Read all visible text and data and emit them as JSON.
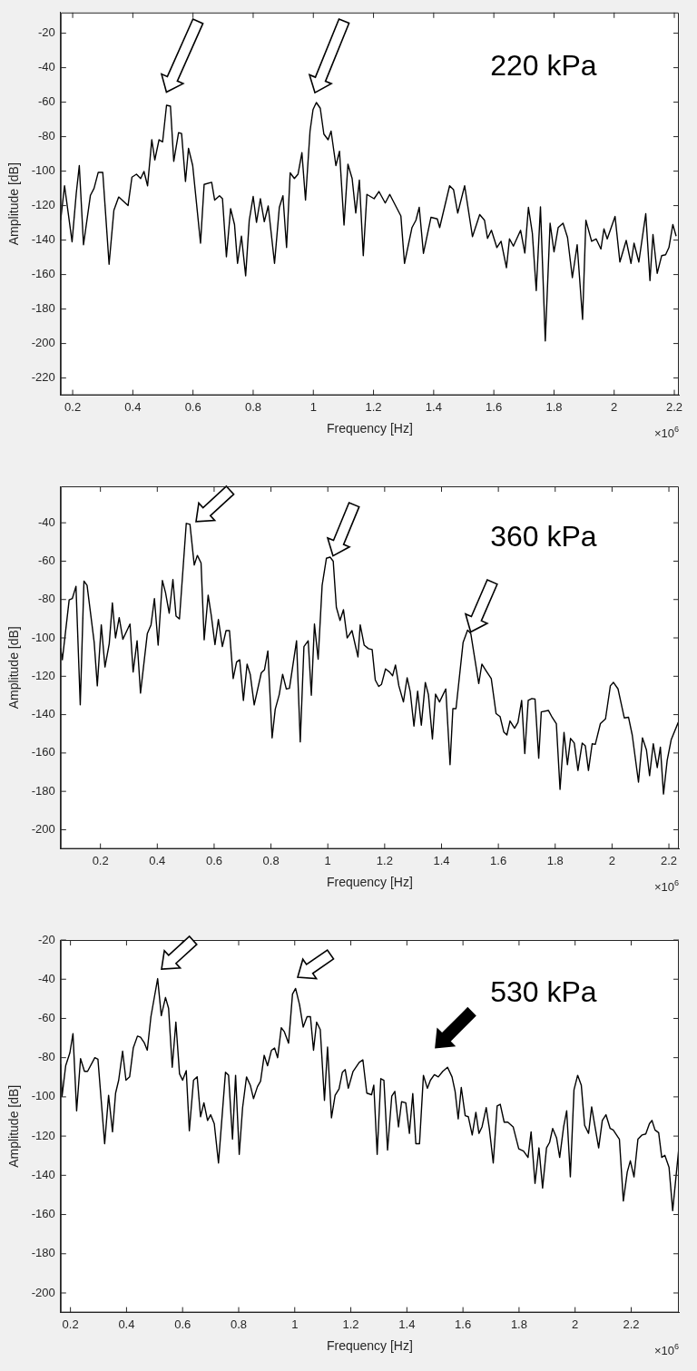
{
  "chart_data": [
    {
      "type": "line",
      "xlabel": "Frequency [Hz]",
      "ylabel": "Amplitude [dB]",
      "annotations": [
        "220 kPa",
        "×10$^{6}$"
      ],
      "marker": "none",
      "line_style": "solid",
      "xlim": [
        0.16,
        2.215
      ],
      "ylim": [
        -230,
        -8
      ],
      "xticks": [
        0.2,
        0.4,
        0.6,
        0.8,
        1,
        1.2,
        1.4,
        1.6,
        1.8,
        2,
        2.2
      ],
      "yticks": [
        -20,
        -40,
        -60,
        -80,
        -100,
        -120,
        -140,
        -160,
        -180,
        -200,
        -220
      ],
      "series": [
        {
          "color": "#000000",
          "x": [
            0.16,
            0.173,
            0.198,
            0.212,
            0.222,
            0.236,
            0.259,
            0.271,
            0.285,
            0.3,
            0.321,
            0.337,
            0.353,
            0.384,
            0.397,
            0.412,
            0.426,
            0.437,
            0.449,
            0.463,
            0.473,
            0.487,
            0.499,
            0.512,
            0.525,
            0.536,
            0.552,
            0.562,
            0.575,
            0.585,
            0.599,
            0.625,
            0.637,
            0.662,
            0.672,
            0.688,
            0.698,
            0.711,
            0.725,
            0.738,
            0.748,
            0.761,
            0.775,
            0.787,
            0.8,
            0.811,
            0.824,
            0.837,
            0.85,
            0.871,
            0.887,
            0.899,
            0.911,
            0.923,
            0.937,
            0.949,
            0.962,
            0.974,
            0.989,
            0.999,
            1.01,
            1.023,
            1.035,
            1.049,
            1.059,
            1.075,
            1.087,
            1.102,
            1.115,
            1.129,
            1.141,
            1.153,
            1.166,
            1.178,
            1.202,
            1.218,
            1.239,
            1.254,
            1.291,
            1.303,
            1.328,
            1.341,
            1.352,
            1.366,
            1.391,
            1.412,
            1.42,
            1.453,
            1.466,
            1.48,
            1.503,
            1.529,
            1.553,
            1.569,
            1.579,
            1.592,
            1.61,
            1.624,
            1.642,
            1.652,
            1.665,
            1.689,
            1.703,
            1.715,
            1.728,
            1.741,
            1.755,
            1.771,
            1.787,
            1.8,
            1.814,
            1.83,
            1.845,
            1.861,
            1.877,
            1.895,
            1.906,
            1.925,
            1.94,
            1.956,
            1.966,
            1.977,
            2.003,
            2.019,
            2.04,
            2.056,
            2.066,
            2.082,
            2.105,
            2.119,
            2.129,
            2.143,
            2.158,
            2.171,
            2.182,
            2.195,
            2.206
          ],
          "values": [
            -128.5,
            -108.5,
            -141,
            -112.7,
            -96.8,
            -142.7,
            -114,
            -110,
            -100.7,
            -100.7,
            -154,
            -122.7,
            -115,
            -120,
            -103.5,
            -101.8,
            -104.3,
            -100.2,
            -108.5,
            -81.8,
            -93.5,
            -81.8,
            -83,
            -61.8,
            -62.3,
            -94.3,
            -77.7,
            -78.2,
            -106,
            -86.8,
            -96.8,
            -141.8,
            -107.7,
            -106.5,
            -116.8,
            -114.3,
            -116,
            -149.7,
            -121.8,
            -131,
            -153.5,
            -137.7,
            -160.7,
            -128.5,
            -114.7,
            -129.7,
            -116,
            -129.3,
            -120.2,
            -153.5,
            -121,
            -114.3,
            -144.3,
            -101,
            -104.3,
            -101.8,
            -89.3,
            -116.8,
            -76.8,
            -64.3,
            -60.2,
            -63.5,
            -78.5,
            -81.8,
            -76.8,
            -96.8,
            -88.5,
            -131.3,
            -96,
            -104.3,
            -124.3,
            -105.2,
            -149,
            -113.5,
            -116,
            -111.8,
            -118.5,
            -113.5,
            -126,
            -153.5,
            -132.7,
            -128.5,
            -121,
            -147.7,
            -126.8,
            -127.7,
            -132.7,
            -108.5,
            -110.7,
            -124.3,
            -108.5,
            -138,
            -125.2,
            -128.5,
            -139,
            -134.3,
            -144.3,
            -140.7,
            -156,
            -139.3,
            -143.5,
            -134.3,
            -147.5,
            -121,
            -136,
            -169.3,
            -120.7,
            -198.5,
            -130.2,
            -146.8,
            -132.7,
            -130.2,
            -138.5,
            -161.8,
            -142.7,
            -186,
            -128.5,
            -140.7,
            -139.3,
            -145.2,
            -133.5,
            -139.3,
            -126.3,
            -152.7,
            -140.2,
            -153.5,
            -141.8,
            -152.7,
            -124.7,
            -163.5,
            -136.8,
            -159.3,
            -149,
            -148.5,
            -144.3,
            -131,
            -137.7
          ]
        }
      ]
    },
    {
      "type": "line",
      "xlabel": "Frequency [Hz]",
      "ylabel": "Amplitude [dB]",
      "annotations": [
        "360 kPa",
        "×10$^{6}$"
      ],
      "marker": "none",
      "line_style": "solid",
      "xlim": [
        0.06,
        2.235
      ],
      "ylim": [
        -210,
        -21
      ],
      "xticks": [
        0.2,
        0.4,
        0.6,
        0.8,
        1,
        1.2,
        1.4,
        1.6,
        1.8,
        2,
        2.2
      ],
      "yticks": [
        -40,
        -60,
        -80,
        -100,
        -120,
        -140,
        -160,
        -180,
        -200
      ],
      "series": [
        {
          "color": "#000000",
          "x": [
            0.06,
            0.066,
            0.09,
            0.101,
            0.114,
            0.129,
            0.142,
            0.153,
            0.178,
            0.189,
            0.203,
            0.216,
            0.231,
            0.242,
            0.253,
            0.266,
            0.279,
            0.304,
            0.315,
            0.329,
            0.341,
            0.365,
            0.378,
            0.39,
            0.403,
            0.418,
            0.429,
            0.442,
            0.455,
            0.466,
            0.478,
            0.502,
            0.515,
            0.53,
            0.541,
            0.554,
            0.565,
            0.579,
            0.59,
            0.603,
            0.615,
            0.629,
            0.642,
            0.654,
            0.667,
            0.679,
            0.69,
            0.703,
            0.716,
            0.727,
            0.741,
            0.766,
            0.777,
            0.789,
            0.804,
            0.815,
            0.829,
            0.841,
            0.854,
            0.865,
            0.89,
            0.903,
            0.916,
            0.931,
            0.942,
            0.953,
            0.966,
            0.98,
            0.995,
            1.008,
            1.019,
            1.03,
            1.043,
            1.055,
            1.068,
            1.085,
            1.106,
            1.114,
            1.128,
            1.143,
            1.156,
            1.167,
            1.179,
            1.189,
            1.203,
            1.217,
            1.228,
            1.238,
            1.25,
            1.266,
            1.279,
            1.29,
            1.303,
            1.316,
            1.329,
            1.343,
            1.354,
            1.368,
            1.379,
            1.393,
            1.415,
            1.43,
            1.44,
            1.451,
            1.476,
            1.492,
            1.503,
            1.516,
            1.531,
            1.542,
            1.558,
            1.575,
            1.592,
            1.606,
            1.619,
            1.63,
            1.641,
            1.657,
            1.669,
            1.682,
            1.693,
            1.705,
            1.718,
            1.729,
            1.742,
            1.751,
            1.776,
            1.79,
            1.804,
            1.817,
            1.831,
            1.843,
            1.854,
            1.867,
            1.88,
            1.895,
            1.906,
            1.917,
            1.93,
            1.941,
            1.959,
            1.977,
            1.994,
            2.005,
            2.021,
            2.043,
            2.058,
            2.071,
            2.093,
            2.107,
            2.121,
            2.132,
            2.145,
            2.159,
            2.17,
            2.181,
            2.194,
            2.208,
            2.233
          ],
          "values": [
            -105.3,
            -111.4,
            -80.2,
            -79.5,
            -73.1,
            -134.9,
            -70.4,
            -72.6,
            -102.3,
            -125,
            -93.2,
            -115.2,
            -103,
            -81.8,
            -100,
            -89.4,
            -100.7,
            -92.8,
            -117.8,
            -101.5,
            -128.8,
            -97.7,
            -93.2,
            -79.5,
            -103.8,
            -70.1,
            -76.4,
            -87.1,
            -69.6,
            -88.6,
            -90.1,
            -40.3,
            -40.8,
            -62,
            -57,
            -61,
            -101,
            -77.7,
            -88.3,
            -103.5,
            -90.4,
            -104.5,
            -96.2,
            -96.2,
            -121.2,
            -112.6,
            -111.4,
            -132.6,
            -113.7,
            -119,
            -134.9,
            -118.2,
            -116.7,
            -106.8,
            -152.1,
            -137.2,
            -129.6,
            -119,
            -126.6,
            -126.3,
            -101.5,
            -154.2,
            -104.5,
            -101.5,
            -129.9,
            -92.8,
            -111.1,
            -72.6,
            -58.5,
            -57.9,
            -60,
            -84,
            -90.9,
            -85.3,
            -100,
            -96.2,
            -109.9,
            -93.2,
            -103.8,
            -105.6,
            -106.1,
            -122,
            -125.3,
            -124.2,
            -116.2,
            -117.8,
            -119.7,
            -114.1,
            -125,
            -133.4,
            -120.8,
            -128.1,
            -146,
            -127.8,
            -145.5,
            -123.2,
            -129.6,
            -152.7,
            -129.3,
            -133.4,
            -126.6,
            -166.1,
            -136.9,
            -136.9,
            -102.3,
            -95.9,
            -97.7,
            -109.9,
            -123.8,
            -113.7,
            -117.4,
            -121.2,
            -139.5,
            -141,
            -149,
            -150.6,
            -143.3,
            -147.1,
            -144,
            -132.6,
            -160.3,
            -132.6,
            -131.6,
            -131.9,
            -162.7,
            -138.6,
            -137.8,
            -141.6,
            -144.7,
            -179,
            -149.3,
            -166.1,
            -152.4,
            -154.8,
            -169.1,
            -154.8,
            -156.3,
            -169.1,
            -155.2,
            -155.5,
            -144.7,
            -142.2,
            -125,
            -123.2,
            -126.6,
            -141.7,
            -141.4,
            -150.6,
            -175.2,
            -152.1,
            -158.4,
            -171.8,
            -155.2,
            -167.6,
            -156.9,
            -181.4,
            -163.8,
            -153.1,
            -144
          ]
        }
      ]
    },
    {
      "type": "line",
      "xlabel": "Frequency [Hz]",
      "ylabel": "Amplitude [dB]",
      "annotations": [
        "530 kPa",
        "×10$^{6}$"
      ],
      "marker": "none",
      "line_style": "solid",
      "xlim": [
        0.165,
        2.37
      ],
      "ylim": [
        -210,
        -20
      ],
      "xticks": [
        0.2,
        0.4,
        0.6,
        0.8,
        1,
        1.2,
        1.4,
        1.6,
        1.8,
        2,
        2.2
      ],
      "yticks": [
        -20,
        -40,
        -60,
        -80,
        -100,
        -120,
        -140,
        -160,
        -180,
        -200
      ],
      "series": [
        {
          "color": "#000000",
          "x": [
            0.165,
            0.17,
            0.183,
            0.198,
            0.209,
            0.222,
            0.236,
            0.25,
            0.261,
            0.287,
            0.298,
            0.322,
            0.336,
            0.35,
            0.361,
            0.372,
            0.386,
            0.398,
            0.411,
            0.424,
            0.439,
            0.45,
            0.463,
            0.474,
            0.487,
            0.511,
            0.524,
            0.539,
            0.55,
            0.563,
            0.576,
            0.589,
            0.6,
            0.613,
            0.624,
            0.639,
            0.652,
            0.664,
            0.676,
            0.689,
            0.7,
            0.713,
            0.728,
            0.753,
            0.764,
            0.778,
            0.789,
            0.802,
            0.814,
            0.828,
            0.842,
            0.853,
            0.867,
            0.878,
            0.891,
            0.903,
            0.917,
            0.928,
            0.939,
            0.952,
            0.963,
            0.978,
            0.992,
            1.003,
            1.017,
            1.03,
            1.044,
            1.056,
            1.067,
            1.078,
            1.091,
            1.106,
            1.117,
            1.131,
            1.144,
            1.158,
            1.17,
            1.18,
            1.191,
            1.208,
            1.23,
            1.243,
            1.257,
            1.274,
            1.282,
            1.294,
            1.307,
            1.318,
            1.331,
            1.346,
            1.357,
            1.37,
            1.381,
            1.396,
            1.409,
            1.421,
            1.432,
            1.445,
            1.459,
            1.473,
            1.484,
            1.498,
            1.512,
            1.528,
            1.545,
            1.561,
            1.572,
            1.583,
            1.594,
            1.608,
            1.619,
            1.633,
            1.646,
            1.657,
            1.668,
            1.683,
            1.694,
            1.708,
            1.722,
            1.733,
            1.747,
            1.76,
            1.779,
            1.799,
            1.816,
            1.832,
            1.843,
            1.857,
            1.871,
            1.884,
            1.898,
            1.909,
            1.92,
            1.934,
            1.945,
            1.959,
            1.97,
            1.983,
            1.996,
            2.009,
            2.022,
            2.034,
            2.048,
            2.059,
            2.073,
            2.084,
            2.097,
            2.11,
            2.125,
            2.136,
            2.158,
            2.172,
            2.186,
            2.197,
            2.21,
            2.224,
            2.239,
            2.252,
            2.265,
            2.274,
            2.285,
            2.298,
            2.309,
            2.32,
            2.335,
            2.348,
            2.357,
            2.37
          ],
          "values": [
            -83.3,
            -99.7,
            -84.1,
            -77.5,
            -67.7,
            -107.1,
            -80.5,
            -87,
            -87,
            -80,
            -80.8,
            -123.9,
            -99.2,
            -117.8,
            -98.1,
            -91.5,
            -76.7,
            -91.5,
            -89.8,
            -75.1,
            -69,
            -69.6,
            -72.3,
            -76.2,
            -59.1,
            -39.7,
            -58.6,
            -49.3,
            -54.8,
            -84.9,
            -61.9,
            -88.2,
            -91.5,
            -86.6,
            -117.3,
            -91.5,
            -89.8,
            -110.1,
            -103,
            -112,
            -109.1,
            -113.7,
            -133.7,
            -87.4,
            -89,
            -121.6,
            -89,
            -129.3,
            -105.5,
            -89.8,
            -94.3,
            -100.9,
            -94.8,
            -92,
            -78.8,
            -84.1,
            -76.2,
            -75.1,
            -80,
            -64.7,
            -66.8,
            -72.6,
            -47.6,
            -44.7,
            -52.9,
            -64.4,
            -59.1,
            -59.1,
            -76.2,
            -61.9,
            -65.7,
            -101.8,
            -74.6,
            -110.7,
            -99.2,
            -95.9,
            -87.4,
            -86.1,
            -95.6,
            -87,
            -82.4,
            -81.1,
            -98.1,
            -98.9,
            -94,
            -129.3,
            -90.7,
            -91.5,
            -127.1,
            -99.7,
            -97.2,
            -115.3,
            -102.5,
            -103,
            -118.6,
            -98.3,
            -123.9,
            -123.9,
            -89,
            -95.6,
            -91.5,
            -88.7,
            -89.8,
            -87,
            -84.9,
            -89.8,
            -97.2,
            -111.2,
            -95.2,
            -109.6,
            -110.1,
            -119.4,
            -107.9,
            -118.6,
            -115.3,
            -105.5,
            -116.1,
            -133.7,
            -104.6,
            -103.8,
            -112.9,
            -112.9,
            -115.3,
            -126.5,
            -127.6,
            -130.9,
            -117.8,
            -144.1,
            -126,
            -146.5,
            -126,
            -123.2,
            -116.1,
            -121,
            -130.9,
            -115.3,
            -107.1,
            -140.8,
            -96.4,
            -89,
            -94,
            -114.5,
            -118.6,
            -105.1,
            -116.9,
            -126,
            -112,
            -109.1,
            -116.1,
            -116.9,
            -121.6,
            -153.1,
            -138.3,
            -132.6,
            -140.8,
            -121.6,
            -119.4,
            -118.9,
            -113.7,
            -112,
            -116.9,
            -118.3,
            -130.9,
            -129.8,
            -135.9,
            -158,
            -144.9,
            -126
          ]
        }
      ]
    }
  ]
}
